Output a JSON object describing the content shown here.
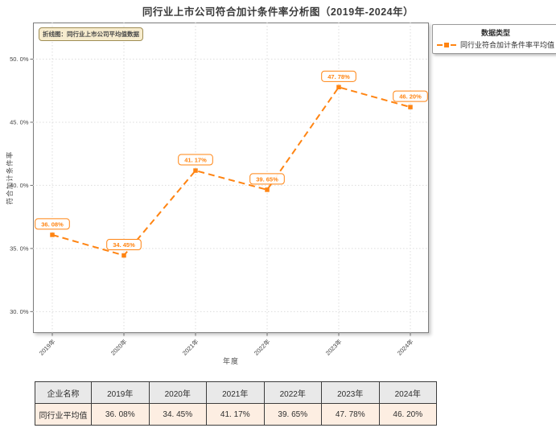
{
  "page": {
    "title": "同行业上市公司符合加计条件率分析图（2019年-2024年）"
  },
  "chart_data": {
    "type": "line",
    "title": "同行业上市公司符合加计条件率分析图（2019年-2024年）",
    "xlabel": "年度",
    "ylabel": "符合加计条件率",
    "x": [
      "2019年",
      "2020年",
      "2021年",
      "2022年",
      "2023年",
      "2024年"
    ],
    "series": [
      {
        "name": "同行业符合加计条件率平均值",
        "values": [
          36.08,
          34.45,
          41.17,
          39.65,
          47.78,
          46.2
        ],
        "point_labels": [
          "36. 08%",
          "34. 45%",
          "41. 17%",
          "39. 65%",
          "47. 78%",
          "46. 20%"
        ],
        "color": "#ff8412",
        "line_style": "dashed",
        "marker": "square"
      }
    ],
    "yticks": [
      30,
      35,
      40,
      45,
      50
    ],
    "ytick_labels": [
      "30. 0%",
      "35. 0%",
      "40. 0%",
      "45. 0%",
      "50. 0%"
    ],
    "ylim": [
      28.3,
      52.9
    ],
    "grid": true,
    "legend_position": "upper-right-outside",
    "annotation": "折线图：同行业上市公司平均值数据"
  },
  "legend": {
    "title": "数据类型",
    "items": [
      {
        "label": "同行业符合加计条件率平均值",
        "color": "#ff8412"
      }
    ]
  },
  "annotation": {
    "text": "折线图：同行业上市公司平均值数据"
  },
  "table": {
    "headers": [
      "企业名称",
      "2019年",
      "2020年",
      "2021年",
      "2022年",
      "2023年",
      "2024年"
    ],
    "rows": [
      {
        "label": "同行业平均值",
        "values": [
          "36. 08%",
          "34. 45%",
          "41. 17%",
          "39. 65%",
          "47. 78%",
          "46. 20%"
        ]
      }
    ]
  },
  "colors": {
    "accent": "#ff8412",
    "grid": "#dcdcdc",
    "spine": "#7d7d7d",
    "annotation_bg": "#f7ecce",
    "table_header_bg": "#e9e9e9",
    "table_row_bg": "#fdeee2"
  }
}
